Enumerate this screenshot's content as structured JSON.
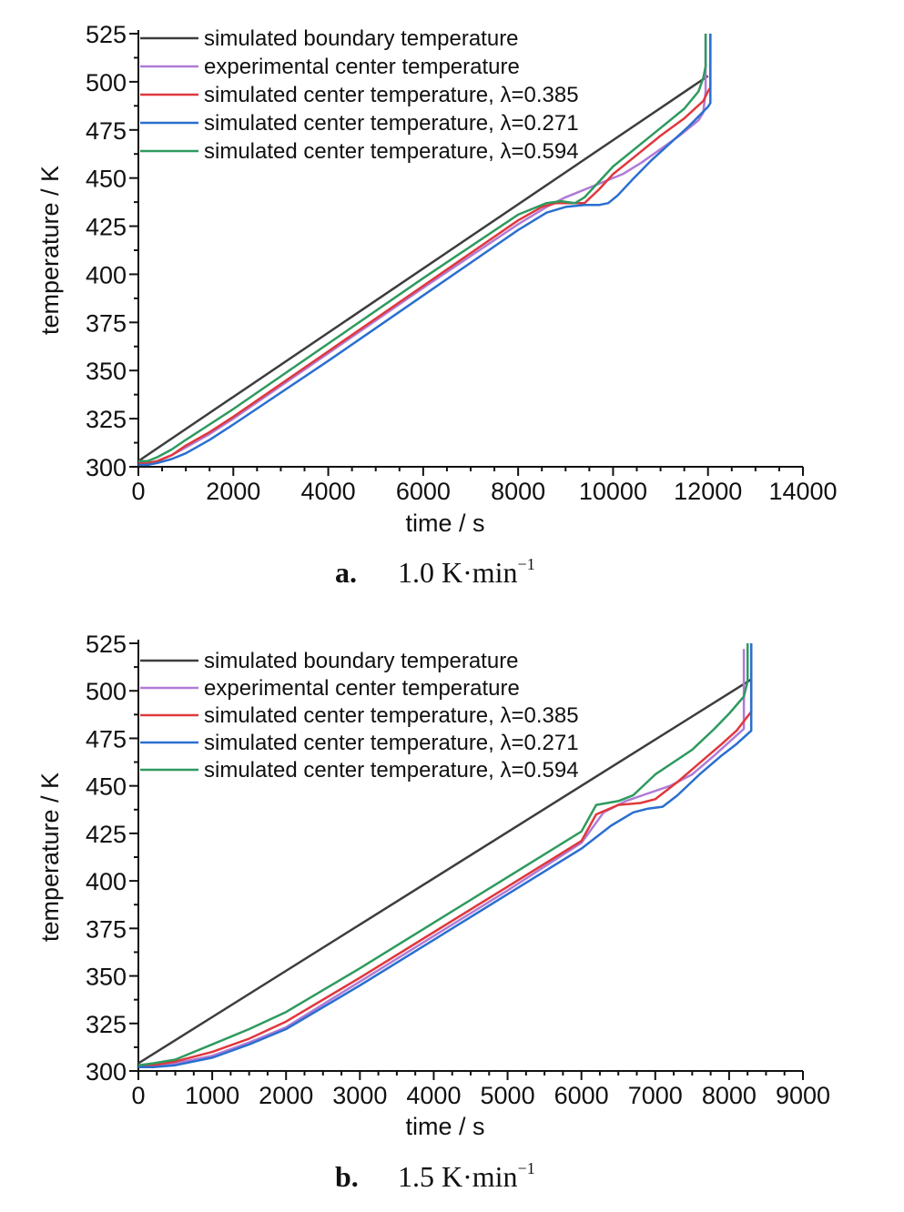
{
  "series_colors": {
    "simulated boundary temperature": "#3d3d3d",
    "experimental center temperature": "#b07ad6",
    "simulated center temperature, λ=0.385": "#e0383c",
    "simulated center temperature, λ=0.271": "#2a6fd0",
    "simulated center temperature, λ=0.594": "#2e9a5e"
  },
  "chart_data": [
    {
      "type": "line",
      "panel_label": "a.",
      "caption": "1.0 K·min",
      "caption_superscript": "−1",
      "xlabel": "time / s",
      "ylabel": "temperature / K",
      "xlim": [
        0,
        14000
      ],
      "ylim": [
        300,
        525
      ],
      "xticks": [
        0,
        2000,
        4000,
        6000,
        8000,
        10000,
        12000,
        14000
      ],
      "yticks": [
        300,
        325,
        350,
        375,
        400,
        425,
        450,
        475,
        500,
        525
      ],
      "legend_position": "top-left",
      "series": [
        {
          "name": "simulated boundary temperature",
          "x": [
            0,
            12000,
            12000
          ],
          "y": [
            303,
            503,
            503
          ]
        },
        {
          "name": "experimental center temperature",
          "x": [
            0,
            200,
            400,
            700,
            1000,
            1500,
            2000,
            4000,
            6000,
            8000,
            8600,
            9000,
            9400,
            9800,
            10200,
            10600,
            11000,
            11400,
            11800,
            11900,
            11950,
            11950
          ],
          "y": [
            302,
            302,
            303,
            306,
            310,
            317,
            325,
            359,
            393,
            426,
            435,
            440,
            444,
            448,
            452,
            458,
            465,
            472,
            480,
            484,
            495,
            525
          ]
        },
        {
          "name": "simulated center temperature, λ=0.385",
          "x": [
            0,
            200,
            400,
            700,
            1000,
            1500,
            2000,
            4000,
            6000,
            8000,
            8500,
            8800,
            9100,
            9400,
            9700,
            10000,
            10500,
            11000,
            11500,
            11900,
            12000,
            12050,
            12050
          ],
          "y": [
            302,
            302,
            303,
            306,
            311,
            318,
            326,
            360,
            394,
            428,
            435,
            437,
            437,
            437,
            444,
            452,
            462,
            472,
            481,
            490,
            495,
            497,
            525
          ]
        },
        {
          "name": "simulated center temperature, λ=0.271",
          "x": [
            0,
            200,
            400,
            700,
            1000,
            1500,
            2000,
            4000,
            6000,
            8000,
            8600,
            9000,
            9400,
            9700,
            9900,
            10100,
            10400,
            10800,
            11200,
            11600,
            12000,
            12050,
            12050
          ],
          "y": [
            301,
            301,
            302,
            304,
            307,
            314,
            322,
            355,
            389,
            423,
            432,
            435,
            436,
            436,
            437,
            441,
            449,
            459,
            468,
            477,
            487,
            489,
            525
          ]
        },
        {
          "name": "simulated center temperature, λ=0.594",
          "x": [
            0,
            200,
            400,
            700,
            1000,
            1500,
            2000,
            4000,
            6000,
            8000,
            8600,
            8900,
            9200,
            9400,
            9700,
            10000,
            10500,
            11000,
            11500,
            11800,
            11900,
            11950,
            11950
          ],
          "y": [
            303,
            303,
            305,
            309,
            314,
            322,
            330,
            364,
            398,
            431,
            437,
            438,
            437,
            440,
            448,
            456,
            466,
            476,
            486,
            495,
            502,
            508,
            525
          ]
        }
      ]
    },
    {
      "type": "line",
      "panel_label": "b.",
      "caption": "1.5 K·min",
      "caption_superscript": "−1",
      "xlabel": "time / s",
      "ylabel": "temperature / K",
      "xlim": [
        0,
        9000
      ],
      "ylim": [
        300,
        525
      ],
      "xticks": [
        0,
        1000,
        2000,
        3000,
        4000,
        5000,
        6000,
        7000,
        8000,
        9000
      ],
      "yticks": [
        300,
        325,
        350,
        375,
        400,
        425,
        450,
        475,
        500,
        525
      ],
      "legend_position": "top-left",
      "series": [
        {
          "name": "simulated boundary temperature",
          "x": [
            0,
            8300
          ],
          "y": [
            304,
            506
          ]
        },
        {
          "name": "experimental center temperature",
          "x": [
            0,
            200,
            500,
            1000,
            1500,
            2000,
            3000,
            4000,
            5000,
            6000,
            6300,
            6600,
            6900,
            7200,
            7500,
            7800,
            8000,
            8200,
            8200
          ],
          "y": [
            303,
            303,
            304,
            308,
            315,
            323,
            347,
            371,
            395,
            420,
            436,
            442,
            446,
            450,
            456,
            466,
            473,
            480,
            522
          ]
        },
        {
          "name": "simulated center temperature, λ=0.385",
          "x": [
            0,
            200,
            500,
            1000,
            1500,
            2000,
            3000,
            4000,
            5000,
            6000,
            6200,
            6500,
            6800,
            7000,
            7300,
            7600,
            7900,
            8100,
            8300,
            8300
          ],
          "y": [
            303,
            303,
            305,
            310,
            317,
            326,
            349,
            373,
            397,
            421,
            435,
            440,
            441,
            443,
            452,
            462,
            472,
            479,
            489,
            525
          ]
        },
        {
          "name": "simulated center temperature, λ=0.271",
          "x": [
            0,
            200,
            500,
            1000,
            1500,
            2000,
            3000,
            4000,
            5000,
            6000,
            6400,
            6700,
            6900,
            7100,
            7300,
            7600,
            7900,
            8100,
            8300,
            8300
          ],
          "y": [
            302,
            302,
            303,
            307,
            314,
            322,
            345,
            369,
            393,
            417,
            429,
            436,
            438,
            439,
            445,
            456,
            466,
            472,
            479,
            525
          ]
        },
        {
          "name": "simulated center temperature, λ=0.594",
          "x": [
            0,
            200,
            500,
            1000,
            1500,
            2000,
            3000,
            4000,
            5000,
            6000,
            6200,
            6500,
            6700,
            7000,
            7500,
            7800,
            8000,
            8200,
            8250,
            8250
          ],
          "y": [
            303,
            304,
            306,
            314,
            322,
            331,
            354,
            378,
            402,
            426,
            440,
            442,
            445,
            456,
            469,
            480,
            488,
            497,
            505,
            525
          ]
        }
      ]
    }
  ]
}
